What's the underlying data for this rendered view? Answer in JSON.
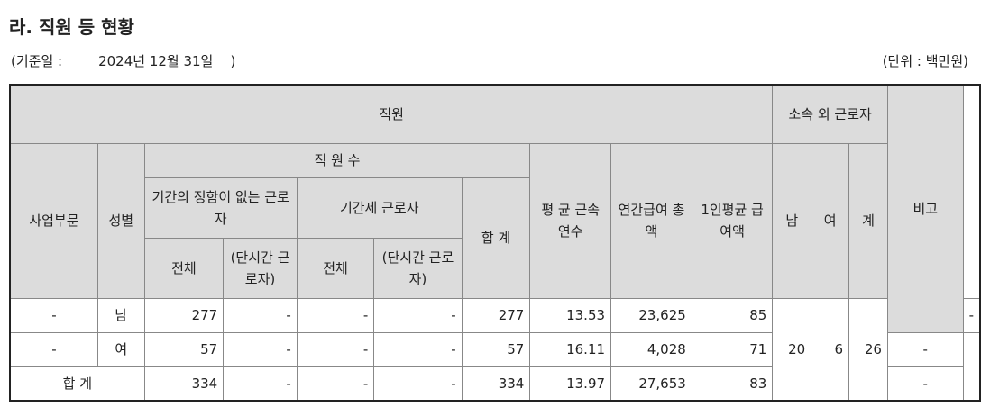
{
  "title": "라. 직원 등 현황",
  "base_date_label": "(기준일 :",
  "base_date": "2024년 12월 31일",
  "base_date_close": ")",
  "unit": "(단위 : 백만원)",
  "headers": {
    "employees": "직원",
    "outsourced": "소속 외 근로자",
    "remark": "비고",
    "division": "사업부문",
    "gender": "성별",
    "headcount": "직 원 수",
    "permanent": "기간의 정함이 없는 근로자",
    "contract": "기간제 근로자",
    "total": "전체",
    "part_time": "(단시간 근로자)",
    "sum": "합 계",
    "avg_tenure": "평 균 근속연수",
    "annual_pay": "연간급여 총 액",
    "avg_pay": "1인평균 급여액",
    "male": "남",
    "female": "여",
    "out_total": "계"
  },
  "rows": [
    {
      "division": "-",
      "gender": "남",
      "perm_total": "277",
      "perm_part": "-",
      "cont_total": "-",
      "cont_part": "-",
      "sum": "277",
      "tenure": "13.53",
      "pay": "23,625",
      "avg": "85",
      "remark": "-"
    },
    {
      "division": "-",
      "gender": "여",
      "perm_total": "57",
      "perm_part": "-",
      "cont_total": "-",
      "cont_part": "-",
      "sum": "57",
      "tenure": "16.11",
      "pay": "4,028",
      "avg": "71",
      "remark": "-"
    },
    {
      "label": "합 계",
      "perm_total": "334",
      "perm_part": "-",
      "cont_total": "-",
      "cont_part": "-",
      "sum": "334",
      "tenure": "13.97",
      "pay": "27,653",
      "avg": "83",
      "remark": "-"
    }
  ],
  "outsourced": {
    "male": "20",
    "female": "6",
    "total": "26"
  }
}
